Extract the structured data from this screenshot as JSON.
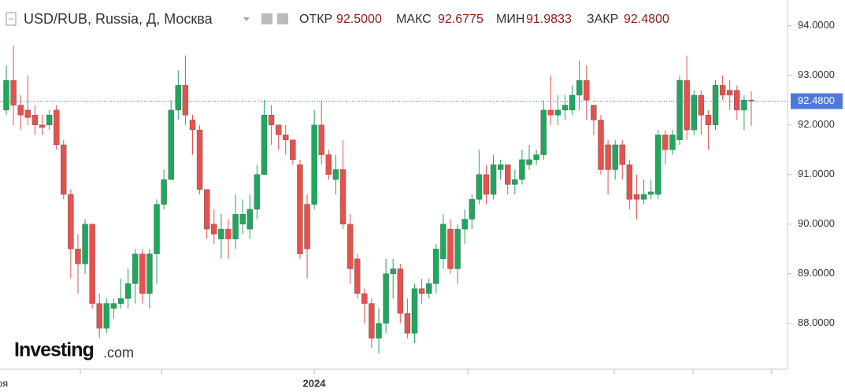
{
  "chart_data": {
    "type": "candlestick",
    "title": "USD/RUB, Russia, Д, Москва",
    "stats": [
      {
        "label": "ОТКР",
        "value": "92.5000"
      },
      {
        "label": "МАКС",
        "value": "92.6775"
      },
      {
        "label": "МИН",
        "value": "91.9833"
      },
      {
        "label": "ЗАКР",
        "value": "92.4800"
      }
    ],
    "open": [
      92.3,
      92.9,
      92.4,
      92.3,
      92.2,
      92.0,
      92.0,
      92.3,
      91.6,
      90.6,
      89.5,
      89.2,
      90.0,
      88.4,
      87.9,
      88.3,
      88.4,
      88.5,
      88.8,
      89.4,
      88.6,
      89.4,
      90.4,
      90.9,
      92.3,
      92.8,
      92.1,
      91.9,
      90.7,
      90.0,
      89.7,
      89.9,
      89.7,
      90.0,
      89.9,
      90.3,
      91.0,
      92.2,
      92.0,
      91.8,
      91.7,
      91.2,
      90.4,
      90.4,
      92.0,
      91.4,
      90.9,
      91.1,
      90.0,
      89.3,
      88.6,
      88.4,
      87.7,
      88.0,
      89.0,
      89.1,
      88.2,
      87.8,
      88.7,
      88.6,
      88.8,
      89.3,
      89.9,
      89.1,
      89.9,
      90.1,
      90.5,
      91.0,
      90.6,
      91.1,
      91.2,
      90.8,
      90.9,
      91.2,
      91.3,
      91.4,
      92.3,
      92.2,
      92.3,
      92.3,
      92.6,
      92.9,
      92.4,
      92.1,
      91.6,
      91.1,
      91.6,
      91.2,
      90.6,
      90.5,
      90.6,
      90.6,
      91.8,
      91.5,
      91.7,
      92.9,
      91.9,
      92.6,
      92.2,
      92.0,
      92.8,
      92.7,
      92.7,
      92.3,
      92.5
    ],
    "high": [
      93.2,
      93.6,
      92.6,
      93.0,
      92.4,
      92.2,
      92.3,
      92.4,
      91.7,
      90.7,
      89.8,
      90.1,
      90.0,
      88.6,
      88.5,
      88.5,
      88.9,
      89.1,
      89.5,
      89.5,
      89.5,
      90.5,
      91.1,
      92.5,
      93.1,
      93.4,
      92.2,
      92.0,
      90.7,
      90.3,
      90.2,
      90.1,
      90.6,
      90.5,
      90.6,
      91.2,
      92.5,
      92.4,
      92.0,
      92.0,
      91.7,
      91.3,
      90.6,
      92.3,
      92.5,
      91.5,
      91.4,
      91.7,
      90.2,
      89.4,
      88.7,
      88.5,
      88.3,
      89.3,
      89.3,
      89.2,
      88.5,
      88.8,
      88.9,
      88.9,
      89.6,
      90.2,
      90.1,
      90.0,
      90.3,
      90.6,
      91.5,
      91.2,
      91.4,
      91.3,
      91.2,
      91.1,
      91.5,
      91.6,
      91.5,
      92.5,
      93.0,
      92.6,
      92.6,
      92.8,
      93.3,
      93.2,
      92.4,
      92.2,
      91.7,
      91.7,
      91.7,
      91.3,
      91.0,
      90.9,
      90.9,
      91.9,
      91.9,
      91.9,
      93.0,
      93.4,
      92.7,
      92.7,
      92.3,
      92.9,
      93.0,
      92.9,
      92.8,
      92.6,
      92.6775
    ],
    "low": [
      92.2,
      92.0,
      91.9,
      92.0,
      91.8,
      91.8,
      91.9,
      91.5,
      90.5,
      88.9,
      88.6,
      89.0,
      88.3,
      87.7,
      87.8,
      88.1,
      88.3,
      88.3,
      88.4,
      88.4,
      88.3,
      88.8,
      90.3,
      90.9,
      92.1,
      92.0,
      91.4,
      90.6,
      89.7,
      89.6,
      89.3,
      89.3,
      89.5,
      89.8,
      89.7,
      90.1,
      91.0,
      91.6,
      91.5,
      91.4,
      91.2,
      89.3,
      88.9,
      90.3,
      91.2,
      90.9,
      90.6,
      89.9,
      88.8,
      88.5,
      88.0,
      87.5,
      87.4,
      87.8,
      88.5,
      88.0,
      87.7,
      87.6,
      88.4,
      88.5,
      88.6,
      89.1,
      89.0,
      88.8,
      89.6,
      89.9,
      90.4,
      90.4,
      90.5,
      90.9,
      90.6,
      90.6,
      90.8,
      91.1,
      91.2,
      91.3,
      92.0,
      92.0,
      92.1,
      92.2,
      92.3,
      92.1,
      91.8,
      91.0,
      90.6,
      90.9,
      90.9,
      90.3,
      90.1,
      90.4,
      90.5,
      90.5,
      91.2,
      91.4,
      91.6,
      91.7,
      91.8,
      91.8,
      91.5,
      91.9,
      92.5,
      92.3,
      92.1,
      91.9,
      91.9833
    ],
    "close": [
      92.9,
      92.4,
      92.2,
      92.15,
      92.0,
      91.95,
      92.2,
      91.6,
      90.6,
      89.5,
      89.2,
      90.0,
      88.4,
      87.9,
      88.4,
      88.4,
      88.5,
      88.8,
      89.4,
      88.6,
      89.4,
      90.4,
      90.9,
      92.3,
      92.8,
      92.2,
      91.9,
      90.7,
      89.9,
      89.8,
      89.9,
      89.7,
      90.2,
      90.2,
      90.3,
      91.0,
      92.2,
      92.0,
      91.8,
      91.7,
      91.3,
      89.4,
      89.5,
      92.0,
      91.4,
      91.0,
      91.1,
      90.0,
      89.1,
      88.6,
      88.4,
      87.7,
      88.0,
      89.0,
      89.1,
      88.2,
      87.8,
      88.7,
      88.6,
      88.8,
      89.5,
      90.0,
      89.1,
      89.9,
      90.1,
      90.5,
      91.0,
      90.6,
      91.2,
      91.2,
      90.8,
      90.9,
      91.3,
      91.3,
      91.4,
      92.3,
      92.2,
      92.3,
      92.4,
      92.6,
      92.9,
      92.5,
      92.1,
      91.1,
      91.1,
      91.6,
      91.2,
      90.5,
      90.5,
      90.6,
      90.65,
      91.8,
      91.5,
      91.8,
      92.9,
      91.9,
      92.6,
      92.2,
      92.0,
      92.8,
      92.6,
      92.6,
      92.3,
      92.5,
      92.48
    ],
    "up_color": "#1fa75e",
    "down_color": "#e5524c",
    "ylim": [
      87.06,
      94.52
    ],
    "yticks": [
      {
        "value": 88,
        "label": "88.0000"
      },
      {
        "value": 89,
        "label": "89.0000"
      },
      {
        "value": 90,
        "label": "90.0000"
      },
      {
        "value": 91,
        "label": "91.0000"
      },
      {
        "value": 92,
        "label": "92.0000"
      },
      {
        "value": 93,
        "label": "93.0000"
      },
      {
        "value": 94,
        "label": "94.0000"
      }
    ],
    "x_labels": [
      "ря",
      "2024"
    ],
    "last_price": {
      "value": 92.48,
      "label": "92.4800"
    },
    "logo": [
      "Investing",
      ".com"
    ]
  }
}
